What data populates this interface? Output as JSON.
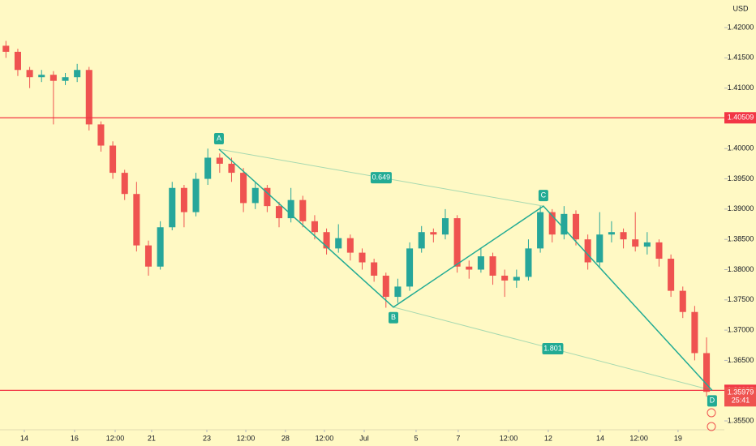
{
  "chart_data": {
    "type": "candlestick",
    "currency": "USD",
    "up_color": "#26a69a",
    "down_color": "#ef5350",
    "background": "#fff9c4",
    "xlim": [
      -0.5,
      60.5
    ],
    "ylim": [
      1.42456,
      1.35353
    ],
    "xticks": [
      {
        "value": 1.55,
        "label": "14"
      },
      {
        "value": 5.78,
        "label": "16"
      },
      {
        "value": 9.2,
        "label": "12:00"
      },
      {
        "value": 12.27,
        "label": "21"
      },
      {
        "value": 16.92,
        "label": "23"
      },
      {
        "value": 20.2,
        "label": "12:00"
      },
      {
        "value": 23.54,
        "label": "28"
      },
      {
        "value": 26.82,
        "label": "12:00"
      },
      {
        "value": 30.17,
        "label": "Jul"
      },
      {
        "value": 34.54,
        "label": "5"
      },
      {
        "value": 38.09,
        "label": "7"
      },
      {
        "value": 42.33,
        "label": "12:00"
      },
      {
        "value": 45.67,
        "label": "12"
      },
      {
        "value": 50.05,
        "label": "14"
      },
      {
        "value": 53.3,
        "label": "12:00"
      },
      {
        "value": 56.6,
        "label": "19"
      }
    ],
    "yticks": [
      {
        "value": 1.42,
        "label": "1.42000"
      },
      {
        "value": 1.415,
        "label": "1.41500"
      },
      {
        "value": 1.41,
        "label": "1.41000"
      },
      {
        "value": 1.4,
        "label": "1.40000"
      },
      {
        "value": 1.395,
        "label": "1.39500"
      },
      {
        "value": 1.39,
        "label": "1.39000"
      },
      {
        "value": 1.385,
        "label": "1.38500"
      },
      {
        "value": 1.38,
        "label": "1.38000"
      },
      {
        "value": 1.375,
        "label": "1.37500"
      },
      {
        "value": 1.37,
        "label": "1.37000"
      },
      {
        "value": 1.365,
        "label": "1.36500"
      },
      {
        "value": 1.355,
        "label": "1.35500"
      }
    ],
    "ohlc": [
      [
        1.417,
        1.4178,
        1.415,
        1.416
      ],
      [
        1.416,
        1.4165,
        1.412,
        1.413
      ],
      [
        1.413,
        1.4135,
        1.41,
        1.4118
      ],
      [
        1.4118,
        1.413,
        1.411,
        1.4122
      ],
      [
        1.4122,
        1.4128,
        1.404,
        1.4112
      ],
      [
        1.4112,
        1.4125,
        1.4105,
        1.4118
      ],
      [
        1.4118,
        1.414,
        1.411,
        1.413
      ],
      [
        1.413,
        1.4135,
        1.403,
        1.404
      ],
      [
        1.404,
        1.4045,
        1.3995,
        1.4005
      ],
      [
        1.4005,
        1.4012,
        1.395,
        1.396
      ],
      [
        1.396,
        1.3965,
        1.3915,
        1.3925
      ],
      [
        1.3925,
        1.3945,
        1.383,
        1.384
      ],
      [
        1.384,
        1.3848,
        1.379,
        1.3805
      ],
      [
        1.3805,
        1.388,
        1.38,
        1.387
      ],
      [
        1.387,
        1.3945,
        1.3865,
        1.3935
      ],
      [
        1.3935,
        1.394,
        1.387,
        1.3895
      ],
      [
        1.3895,
        1.396,
        1.3888,
        1.395
      ],
      [
        1.395,
        1.4,
        1.394,
        1.3985
      ],
      [
        1.3985,
        1.3992,
        1.396,
        1.3975
      ],
      [
        1.3975,
        1.3985,
        1.3945,
        1.396
      ],
      [
        1.396,
        1.3968,
        1.3895,
        1.391
      ],
      [
        1.391,
        1.3945,
        1.39,
        1.3935
      ],
      [
        1.3935,
        1.394,
        1.3895,
        1.3905
      ],
      [
        1.3905,
        1.3912,
        1.387,
        1.3885
      ],
      [
        1.3885,
        1.3935,
        1.3878,
        1.3915
      ],
      [
        1.3915,
        1.3922,
        1.387,
        1.388
      ],
      [
        1.388,
        1.389,
        1.385,
        1.3862
      ],
      [
        1.3862,
        1.3868,
        1.3825,
        1.3835
      ],
      [
        1.3835,
        1.3875,
        1.3828,
        1.3852
      ],
      [
        1.3852,
        1.3858,
        1.3815,
        1.3828
      ],
      [
        1.3828,
        1.3835,
        1.38,
        1.3812
      ],
      [
        1.3812,
        1.3818,
        1.378,
        1.379
      ],
      [
        1.379,
        1.3795,
        1.3737,
        1.3755
      ],
      [
        1.3755,
        1.3785,
        1.3745,
        1.3772
      ],
      [
        1.3772,
        1.3845,
        1.3765,
        1.3835
      ],
      [
        1.3835,
        1.3872,
        1.3828,
        1.3862
      ],
      [
        1.3862,
        1.3868,
        1.3845,
        1.3858
      ],
      [
        1.3858,
        1.39,
        1.385,
        1.3885
      ],
      [
        1.3885,
        1.389,
        1.3795,
        1.3805
      ],
      [
        1.3805,
        1.3815,
        1.3785,
        1.38
      ],
      [
        1.38,
        1.3835,
        1.3795,
        1.3822
      ],
      [
        1.3822,
        1.3828,
        1.3775,
        1.379
      ],
      [
        1.379,
        1.38,
        1.3755,
        1.3782
      ],
      [
        1.3782,
        1.38,
        1.377,
        1.3788
      ],
      [
        1.3788,
        1.385,
        1.3782,
        1.3835
      ],
      [
        1.3835,
        1.3905,
        1.3828,
        1.3895
      ],
      [
        1.3895,
        1.39,
        1.3845,
        1.3858
      ],
      [
        1.3858,
        1.3905,
        1.385,
        1.3892
      ],
      [
        1.3892,
        1.3898,
        1.384,
        1.385
      ],
      [
        1.385,
        1.3858,
        1.38,
        1.3812
      ],
      [
        1.3812,
        1.3895,
        1.3805,
        1.3858
      ],
      [
        1.3858,
        1.388,
        1.3845,
        1.3862
      ],
      [
        1.3862,
        1.3868,
        1.3835,
        1.385
      ],
      [
        1.385,
        1.3895,
        1.383,
        1.3838
      ],
      [
        1.3838,
        1.3862,
        1.3825,
        1.3845
      ],
      [
        1.3845,
        1.385,
        1.3805,
        1.3818
      ],
      [
        1.3818,
        1.3825,
        1.3755,
        1.3765
      ],
      [
        1.3765,
        1.3772,
        1.372,
        1.373
      ],
      [
        1.373,
        1.374,
        1.365,
        1.3662
      ],
      [
        1.3662,
        1.3688,
        1.359,
        1.3598
      ]
    ],
    "hlines": [
      {
        "value": 1.40509,
        "label": "1.40509",
        "color": "#f23645"
      },
      {
        "value": 1.36005,
        "label": "1.36005",
        "color": "#f23645"
      }
    ],
    "last_price": {
      "value": 1.35979,
      "label": "1.35979",
      "countdown": "25:41",
      "color": "#ef5350"
    },
    "pattern": {
      "color": "#22ab94",
      "points": [
        {
          "label": "A",
          "x": 17.94,
          "y": 1.3999
        },
        {
          "label": "B",
          "x": 32.63,
          "y": 1.3738
        },
        {
          "label": "C",
          "x": 45.26,
          "y": 1.3905
        },
        {
          "label": "D",
          "x": 59.47,
          "y": 1.36005
        }
      ],
      "ratios": [
        0.649,
        1.801
      ]
    }
  }
}
